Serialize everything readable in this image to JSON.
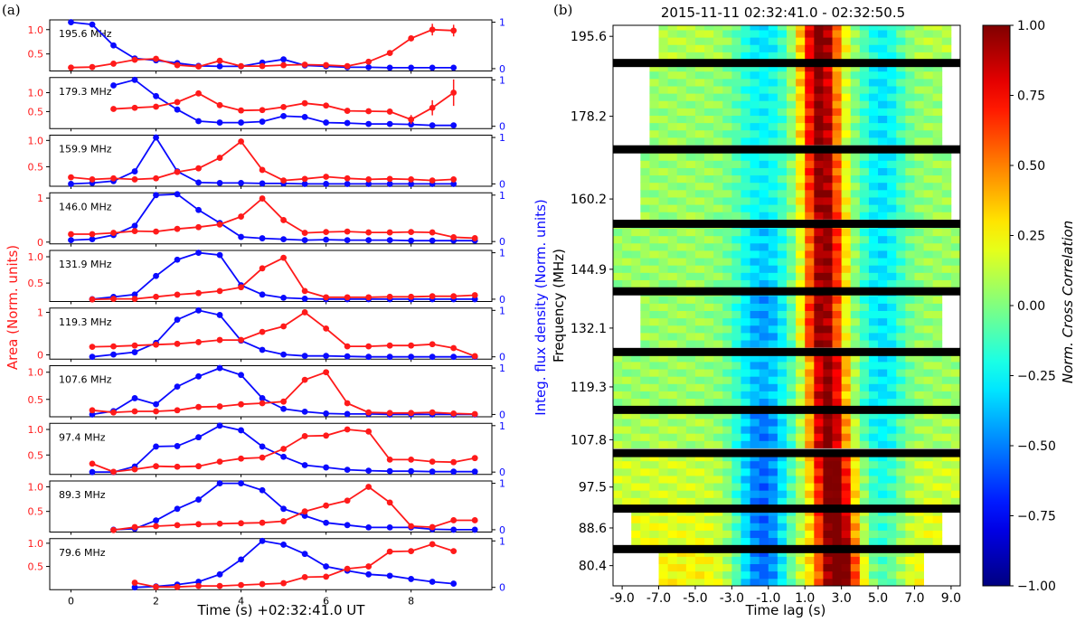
{
  "chart_data": [
    {
      "panel_label": "(a)",
      "type": "line",
      "xlabel": "Time (s)  +02:32:41.0 UT",
      "ylabel_left": "Area (Norm. units)",
      "ylabel_right": "Integ. flux density (Norm. units)",
      "x_ticks": [
        "0",
        "2",
        "4",
        "6",
        "8"
      ],
      "xlim": [
        -0.5,
        9.9
      ],
      "colors": {
        "area": "#ff1a1a",
        "flux": "#0a0aff"
      },
      "subplots": [
        {
          "label": "195.6 MHz",
          "ylim": [
            0.15,
            1.2
          ],
          "yticks": [
            0.5,
            1.0
          ],
          "ytick_labels": [
            "0.5",
            "1.0"
          ],
          "rticks": [
            "0",
            "1"
          ],
          "x": [
            0,
            0.5,
            1,
            1.5,
            2,
            2.5,
            3,
            3.5,
            4,
            4.5,
            5,
            5.5,
            6,
            6.5,
            7,
            7.5,
            8,
            8.5,
            9
          ],
          "area": [
            0.22,
            0.23,
            0.3,
            0.38,
            0.4,
            0.27,
            0.24,
            0.36,
            0.25,
            0.25,
            0.27,
            0.28,
            0.27,
            0.25,
            0.34,
            0.52,
            0.82,
            1.0,
            0.98
          ],
          "flux": [
            1.0,
            0.95,
            0.5,
            0.22,
            0.18,
            0.12,
            0.06,
            0.05,
            0.05,
            0.13,
            0.2,
            0.07,
            0.05,
            0.03,
            0.03,
            0.02,
            0.02,
            0.02,
            0.02
          ],
          "area_err": {
            "8.5": 0.12,
            "9": 0.12
          }
        },
        {
          "label": "179.3 MHz",
          "ylim": [
            0.05,
            1.4
          ],
          "yticks": [
            0.5,
            1.0
          ],
          "ytick_labels": [
            "0.5",
            "1.0"
          ],
          "rticks": [
            "0",
            "1"
          ],
          "x": [
            1,
            1.5,
            2,
            2.5,
            3,
            3.5,
            4,
            4.5,
            5,
            5.5,
            6,
            6.5,
            7,
            7.5,
            8,
            8.5,
            9
          ],
          "area": [
            0.57,
            0.6,
            0.63,
            0.75,
            0.98,
            0.67,
            0.53,
            0.54,
            0.62,
            0.72,
            0.66,
            0.52,
            0.51,
            0.5,
            0.29,
            0.6,
            1.0
          ],
          "flux": [
            0.88,
            1.0,
            0.65,
            0.36,
            0.11,
            0.08,
            0.08,
            0.1,
            0.22,
            0.2,
            0.08,
            0.07,
            0.05,
            0.05,
            0.04,
            0.02,
            0.02
          ],
          "area_err": {
            "8": 0.12,
            "8.5": 0.2,
            "9": 0.35
          }
        },
        {
          "label": "159.9 MHz",
          "ylim": [
            0.13,
            1.1
          ],
          "yticks": [
            0.5,
            1.0
          ],
          "ytick_labels": [
            "0.5",
            "1.0"
          ],
          "rticks": [
            "0",
            "1"
          ],
          "x": [
            0,
            0.5,
            1,
            1.5,
            2,
            2.5,
            3,
            3.5,
            4,
            4.5,
            5,
            5.5,
            6,
            6.5,
            7,
            7.5,
            8,
            8.5,
            9
          ],
          "area": [
            0.3,
            0.26,
            0.28,
            0.26,
            0.28,
            0.4,
            0.47,
            0.67,
            0.98,
            0.44,
            0.24,
            0.27,
            0.31,
            0.28,
            0.26,
            0.27,
            0.26,
            0.24,
            0.26
          ],
          "flux": [
            0.0,
            0.02,
            0.06,
            0.27,
            1.0,
            0.27,
            0.03,
            0.02,
            0.02,
            0.01,
            0.01,
            0.0,
            0.0,
            0.0,
            0.0,
            0.0,
            0.0,
            0.0,
            0.0
          ]
        },
        {
          "label": "146.0 MHz",
          "ylim": [
            -0.04,
            1.12
          ],
          "yticks": [
            0,
            1
          ],
          "ytick_labels": [
            "0",
            "1"
          ],
          "rticks": [
            "0",
            "1"
          ],
          "x": [
            0,
            0.5,
            1,
            1.5,
            2,
            2.5,
            3,
            3.5,
            4,
            4.5,
            5,
            5.5,
            6,
            6.5,
            7,
            7.5,
            8,
            8.5,
            9,
            9.5
          ],
          "area": [
            0.18,
            0.18,
            0.21,
            0.25,
            0.24,
            0.3,
            0.34,
            0.4,
            0.58,
            0.99,
            0.5,
            0.21,
            0.23,
            0.24,
            0.22,
            0.22,
            0.23,
            0.22,
            0.11,
            0.09
          ],
          "flux": [
            0.03,
            0.05,
            0.14,
            0.34,
            1.0,
            1.02,
            0.68,
            0.4,
            0.1,
            0.07,
            0.05,
            0.03,
            0.04,
            0.03,
            0.03,
            0.03,
            0.02,
            0.02,
            0.02,
            0.02
          ]
        },
        {
          "label": "131.9 MHz",
          "ylim": [
            0.15,
            1.12
          ],
          "yticks": [
            0.5,
            1.0
          ],
          "ytick_labels": [
            "0.5",
            "1.0"
          ],
          "rticks": [
            "0",
            "1"
          ],
          "x": [
            0.5,
            1,
            1.5,
            2,
            2.5,
            3,
            3.5,
            4,
            4.5,
            5,
            5.5,
            6,
            6.5,
            7,
            7.5,
            8,
            8.5,
            9,
            9.5
          ],
          "area": [
            0.19,
            0.2,
            0.2,
            0.24,
            0.28,
            0.31,
            0.35,
            0.42,
            0.78,
            0.98,
            0.35,
            0.23,
            0.23,
            0.23,
            0.24,
            0.24,
            0.25,
            0.25,
            0.27
          ],
          "flux": [
            0.0,
            0.05,
            0.1,
            0.5,
            0.85,
            1.0,
            0.95,
            0.3,
            0.1,
            0.03,
            0.01,
            0.0,
            0.0,
            0.0,
            0.0,
            0.0,
            0.0,
            0.0,
            0.0
          ]
        },
        {
          "label": "119.3 MHz",
          "ylim": [
            -0.1,
            1.1
          ],
          "yticks": [
            0,
            1
          ],
          "ytick_labels": [
            "0",
            "1"
          ],
          "rticks": [
            "0",
            "1"
          ],
          "x": [
            0.5,
            1,
            1.5,
            2,
            2.5,
            3,
            3.5,
            4,
            4.5,
            5,
            5.5,
            6,
            6.5,
            7,
            7.5,
            8,
            8.5,
            9,
            9.5
          ],
          "area": [
            0.19,
            0.2,
            0.22,
            0.24,
            0.26,
            0.3,
            0.35,
            0.35,
            0.54,
            0.67,
            1.0,
            0.62,
            0.2,
            0.2,
            0.22,
            0.22,
            0.25,
            0.16,
            -0.03
          ],
          "flux": [
            0.0,
            0.05,
            0.1,
            0.3,
            0.8,
            1.0,
            0.9,
            0.35,
            0.15,
            0.05,
            0.02,
            0.02,
            0.01,
            0.0,
            0.0,
            0.0,
            0.0,
            0.0,
            0.0
          ]
        },
        {
          "label": "107.6 MHz",
          "ylim": [
            0.18,
            1.12
          ],
          "yticks": [
            0.5,
            1.0
          ],
          "ytick_labels": [
            "0.5",
            "1.0"
          ],
          "rticks": [
            "0",
            "1"
          ],
          "x": [
            0.5,
            1,
            1.5,
            2,
            2.5,
            3,
            3.5,
            4,
            4.5,
            5,
            5.5,
            6,
            6.5,
            7,
            7.5,
            8,
            8.5,
            9,
            9.5
          ],
          "area": [
            0.3,
            0.26,
            0.28,
            0.28,
            0.3,
            0.36,
            0.37,
            0.41,
            0.43,
            0.46,
            0.86,
            1.0,
            0.43,
            0.26,
            0.25,
            0.25,
            0.26,
            0.24,
            0.23
          ],
          "flux": [
            0.0,
            0.07,
            0.35,
            0.22,
            0.6,
            0.82,
            1.0,
            0.85,
            0.35,
            0.12,
            0.06,
            0.02,
            0.01,
            0.01,
            0.0,
            0.0,
            0.0,
            0.0,
            0.0
          ]
        },
        {
          "label": "97.4 MHz",
          "ylim": [
            0.12,
            1.12
          ],
          "yticks": [
            0.5,
            1.0
          ],
          "ytick_labels": [
            "0.5",
            "1.0"
          ],
          "rticks": [
            "0",
            "1"
          ],
          "x": [
            0.5,
            1,
            1.5,
            2,
            2.5,
            3,
            3.5,
            4,
            4.5,
            5,
            5.5,
            6,
            6.5,
            7,
            7.5,
            8,
            8.5,
            9,
            9.5
          ],
          "area": [
            0.33,
            0.17,
            0.22,
            0.28,
            0.27,
            0.28,
            0.37,
            0.43,
            0.45,
            0.62,
            0.87,
            0.88,
            1.0,
            0.96,
            0.41,
            0.41,
            0.37,
            0.36,
            0.44
          ],
          "flux": [
            0.0,
            0.0,
            0.12,
            0.55,
            0.56,
            0.75,
            1.0,
            0.9,
            0.55,
            0.33,
            0.15,
            0.1,
            0.05,
            0.03,
            0.02,
            0.02,
            0.01,
            0.01,
            0.01
          ]
        },
        {
          "label": "89.3 MHz",
          "ylim": [
            0.08,
            1.12
          ],
          "yticks": [
            0.5,
            1.0
          ],
          "ytick_labels": [
            "0.5",
            "1.0"
          ],
          "rticks": [
            "0",
            "1"
          ],
          "x": [
            1,
            1.5,
            2,
            2.5,
            3,
            3.5,
            4,
            4.5,
            5,
            5.5,
            6,
            6.5,
            7,
            7.5,
            8,
            8.5,
            9,
            9.5
          ],
          "area": [
            0.12,
            0.18,
            0.2,
            0.22,
            0.24,
            0.25,
            0.26,
            0.27,
            0.3,
            0.5,
            0.62,
            0.72,
            1.0,
            0.68,
            0.2,
            0.18,
            0.32,
            0.32
          ],
          "flux": [
            0.0,
            0.02,
            0.2,
            0.45,
            0.65,
            1.0,
            1.0,
            0.85,
            0.45,
            0.3,
            0.15,
            0.1,
            0.05,
            0.05,
            0.05,
            0.01,
            0.0,
            0.0
          ]
        },
        {
          "label": "79.6 MHz",
          "ylim": [
            0.0,
            1.1
          ],
          "yticks": [
            0.5,
            1.0
          ],
          "ytick_labels": [
            "0.5",
            "1.0"
          ],
          "rticks": [
            "0",
            "1"
          ],
          "x": [
            1.5,
            2,
            2.5,
            3,
            3.5,
            4,
            4.5,
            5,
            5.5,
            6,
            6.5,
            7,
            7.5,
            8,
            8.5,
            9
          ],
          "area": [
            0.15,
            0.06,
            0.06,
            0.08,
            0.08,
            0.1,
            0.12,
            0.14,
            0.27,
            0.28,
            0.45,
            0.5,
            0.82,
            0.83,
            0.98,
            0.83
          ],
          "flux": [
            0.0,
            0.02,
            0.06,
            0.12,
            0.28,
            0.6,
            1.0,
            0.92,
            0.72,
            0.45,
            0.36,
            0.28,
            0.25,
            0.18,
            0.12,
            0.08
          ]
        }
      ]
    },
    {
      "panel_label": "(b)",
      "type": "heatmap",
      "title": "2015-11-11 02:32:41.0 - 02:32:50.5",
      "xlabel": "Time lag (s)",
      "ylabel": "Frequency (MHz)",
      "x_ticks": [
        "-9.0",
        "-7.0",
        "-5.0",
        "-3.0",
        "-1.0",
        "1.0",
        "3.0",
        "5.0",
        "7.0",
        "9.0"
      ],
      "x_tick_values": [
        -9,
        -7,
        -5,
        -3,
        -1,
        1,
        3,
        5,
        7,
        9
      ],
      "y_ticks": [
        "195.6",
        "178.2",
        "160.2",
        "144.9",
        "132.1",
        "119.3",
        "107.8",
        "97.5",
        "88.6",
        "80.4"
      ],
      "xlim": [
        -9.5,
        9.5
      ],
      "y_range": [
        76.0,
        198.0
      ],
      "colormap": "jet",
      "colorbar": {
        "label": "Norm. Cross Correlation",
        "range": [
          -1.0,
          1.0
        ],
        "ticks": [
          "1.00",
          "0.75",
          "0.50",
          "0.25",
          "0.00",
          "−0.25",
          "−0.50",
          "−0.75",
          "−1.00"
        ],
        "tick_values": [
          1.0,
          0.75,
          0.5,
          0.25,
          0.0,
          -0.25,
          -0.5,
          -0.75,
          -1.0
        ]
      },
      "separators_mhz": [
        189.9,
        171.1,
        154.9,
        140.2,
        127.0,
        114.4,
        105.0,
        92.9,
        84.1
      ],
      "bands": [
        {
          "from": 190.6,
          "to": 198.0,
          "peak_lag": 1.8,
          "span_lag": [
            -6.8,
            8.8
          ],
          "neg_dip": -0.4,
          "side": 0.1
        },
        {
          "from": 172.0,
          "to": 189.0,
          "peak_lag": 1.8,
          "span_lag": [
            -7.4,
            8.4
          ],
          "neg_dip": -0.3,
          "side": 0.05
        },
        {
          "from": 155.8,
          "to": 170.3,
          "peak_lag": 2.0,
          "span_lag": [
            -7.8,
            8.6
          ],
          "neg_dip": -0.3,
          "side": 0.05
        },
        {
          "from": 141.0,
          "to": 154.0,
          "peak_lag": 2.0,
          "span_lag": [
            -9.5,
            9.5
          ],
          "neg_dip": -0.4,
          "side": 0.05
        },
        {
          "from": 127.9,
          "to": 139.3,
          "peak_lag": 2.0,
          "span_lag": [
            -7.8,
            8.0
          ],
          "neg_dip": -0.5,
          "side": 0.05
        },
        {
          "from": 115.2,
          "to": 126.2,
          "peak_lag": 2.2,
          "span_lag": [
            -9.5,
            9.5
          ],
          "neg_dip": -0.45,
          "side": 0.05
        },
        {
          "from": 106.0,
          "to": 113.5,
          "peak_lag": 2.2,
          "span_lag": [
            -9.0,
            9.0
          ],
          "neg_dip": -0.6,
          "side": 0.08
        },
        {
          "from": 93.6,
          "to": 104.3,
          "peak_lag": 2.5,
          "span_lag": [
            -9.0,
            9.0
          ],
          "neg_dip": -0.7,
          "side": 0.15
        },
        {
          "from": 84.9,
          "to": 92.2,
          "peak_lag": 2.6,
          "span_lag": [
            -8.0,
            8.0
          ],
          "neg_dip": -0.75,
          "side": 0.2
        },
        {
          "from": 76.0,
          "to": 83.3,
          "peak_lag": 2.8,
          "span_lag": [
            -6.8,
            7.0
          ],
          "neg_dip": -0.8,
          "side": 0.25
        }
      ]
    }
  ]
}
